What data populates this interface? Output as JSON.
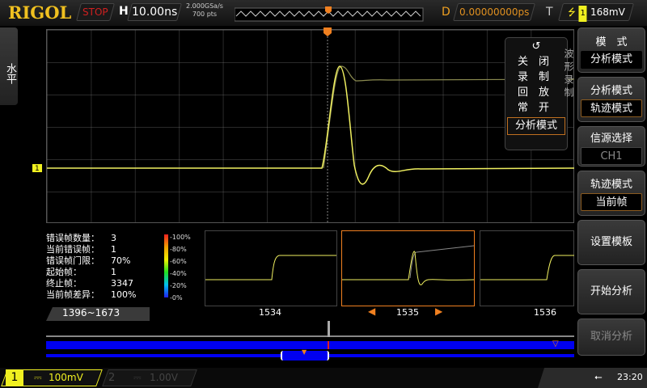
{
  "header": {
    "brand": "RIGOL",
    "run_state": "STOP",
    "h_label": "H",
    "timebase": "10.00ns",
    "sample_rate": "2.000GSa/s",
    "points": "700 pts",
    "delay_label": "D",
    "delay": "0.00000000ps",
    "trigger_label": "T",
    "trigger_channel": "1",
    "trigger_level": "168mV"
  },
  "left_tab": {
    "label": "水平"
  },
  "popup": {
    "items": [
      "关　闭",
      "录　制",
      "回　放",
      "常　开",
      "分析模式"
    ],
    "selected": 4,
    "behind_text": "波形录制"
  },
  "right_menu": {
    "items": [
      {
        "title": "模　式",
        "value": "分析模式"
      },
      {
        "title": "分析模式",
        "value": "轨迹模式"
      },
      {
        "title": "信源选择",
        "value": "CH1"
      },
      {
        "title": "轨迹模式",
        "value": "当前帧"
      },
      {
        "title": "设置模板",
        "value": ""
      },
      {
        "title": "开始分析",
        "value": ""
      },
      {
        "title": "取消分析",
        "value": ""
      }
    ]
  },
  "stats": [
    {
      "label": "错误帧数量：",
      "value": "3"
    },
    {
      "label": "当前错误帧：",
      "value": "1"
    },
    {
      "label": "错误帧门限：",
      "value": "70%"
    },
    {
      "label": "起始帧：",
      "value": "1"
    },
    {
      "label": "终止帧：",
      "value": "3347"
    },
    {
      "label": "当前帧差异：",
      "value": "100%"
    }
  ],
  "color_scale": [
    "-100%",
    "-80%",
    "-60%",
    "-40%",
    "-20%",
    "-0%"
  ],
  "frame_range": "1396~1673",
  "frames": [
    "1534",
    "1535",
    "1536"
  ],
  "channels": [
    {
      "num": "1",
      "scale": "100mV",
      "color": "#f0f020"
    },
    {
      "num": "2",
      "scale": "1.00V",
      "color": "#00b0ff"
    }
  ],
  "ch1_marker": "1",
  "clock": "23:20",
  "colors": {
    "trace": "#f0f060",
    "accent": "#f08020",
    "timeline": "#0000f0"
  }
}
